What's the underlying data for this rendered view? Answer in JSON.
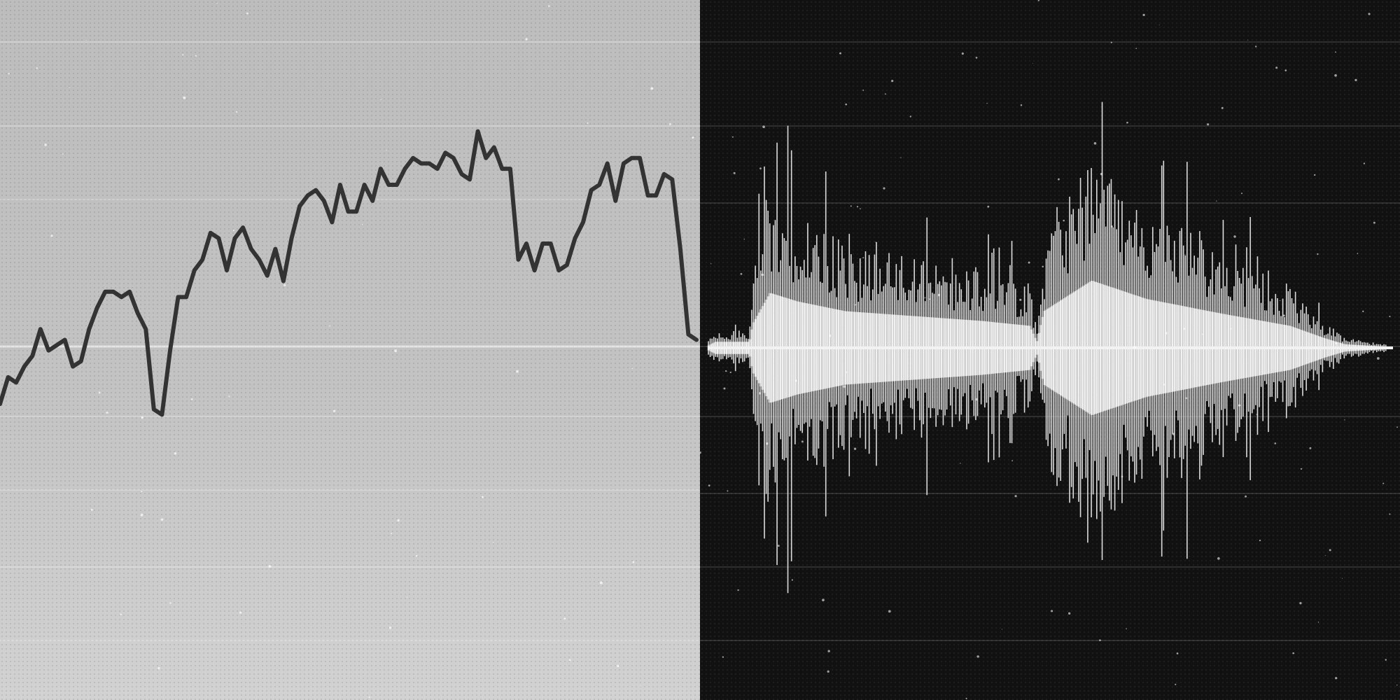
{
  "scene": {
    "description_free": true,
    "left_panel": {
      "line_color": "#333333",
      "background_color": "#c4c4c4",
      "line_series": [
        0.48,
        0.53,
        0.52,
        0.55,
        0.57,
        0.62,
        0.58,
        0.59,
        0.6,
        0.55,
        0.56,
        0.62,
        0.66,
        0.69,
        0.69,
        0.68,
        0.69,
        0.65,
        0.62,
        0.47,
        0.46,
        0.58,
        0.68,
        0.68,
        0.73,
        0.75,
        0.8,
        0.79,
        0.73,
        0.79,
        0.81,
        0.77,
        0.75,
        0.72,
        0.77,
        0.71,
        0.79,
        0.85,
        0.87,
        0.88,
        0.86,
        0.82,
        0.89,
        0.84,
        0.84,
        0.89,
        0.86,
        0.92,
        0.89,
        0.89,
        0.92,
        0.94,
        0.93,
        0.93,
        0.92,
        0.95,
        0.94,
        0.91,
        0.9,
        0.99,
        0.94,
        0.96,
        0.92,
        0.92,
        0.75,
        0.78,
        0.73,
        0.78,
        0.78,
        0.73,
        0.74,
        0.79,
        0.82,
        0.88,
        0.89,
        0.93,
        0.86,
        0.93,
        0.94,
        0.94,
        0.87,
        0.87,
        0.91,
        0.9,
        0.77,
        0.61,
        0.6
      ]
    },
    "right_panel": {
      "waveform_color": "#f2f2f2",
      "background_color": "#111111",
      "sample_count": 380,
      "waveform_envelope": [
        {
          "t": 0.0,
          "a": 0.02
        },
        {
          "t": 0.01,
          "a": 0.05
        },
        {
          "t": 0.06,
          "a": 0.05
        },
        {
          "t": 0.065,
          "a": 0.2
        },
        {
          "t": 0.09,
          "a": 0.45
        },
        {
          "t": 0.13,
          "a": 0.38
        },
        {
          "t": 0.2,
          "a": 0.3
        },
        {
          "t": 0.3,
          "a": 0.26
        },
        {
          "t": 0.4,
          "a": 0.22
        },
        {
          "t": 0.47,
          "a": 0.18
        },
        {
          "t": 0.48,
          "a": 0.05
        },
        {
          "t": 0.49,
          "a": 0.3
        },
        {
          "t": 0.56,
          "a": 0.55
        },
        {
          "t": 0.64,
          "a": 0.4
        },
        {
          "t": 0.75,
          "a": 0.28
        },
        {
          "t": 0.85,
          "a": 0.18
        },
        {
          "t": 0.9,
          "a": 0.08
        },
        {
          "t": 0.93,
          "a": 0.03
        },
        {
          "t": 0.99,
          "a": 0.01
        }
      ]
    }
  }
}
